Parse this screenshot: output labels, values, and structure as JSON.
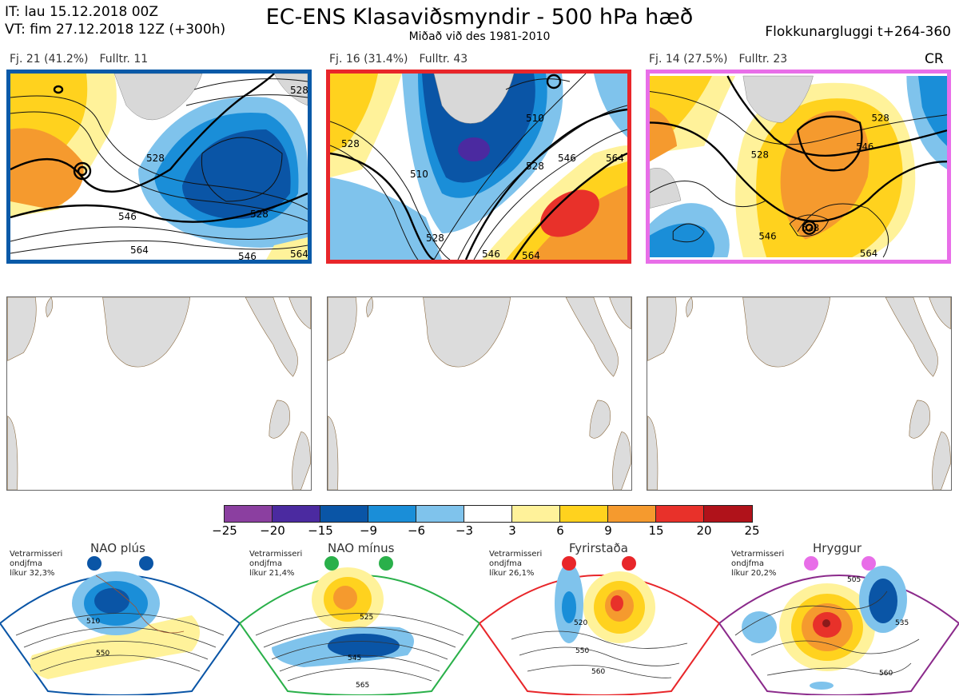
{
  "header": {
    "it": "IT: lau 15.12.2018 00Z",
    "vt": "VT: fim 27.12.2018 12Z  (+300h)",
    "title": "EC-ENS Klasaviðsmyndir - 500 hPa hæð",
    "subtitle": "Miðað við des 1981-2010",
    "window": "Flokkunargluggi t+264-360",
    "cr": "CR"
  },
  "clusters": [
    {
      "count": "Fj. 21 (41.2%)",
      "rep": "Fulltr. 11",
      "border": "#0a5aa8",
      "contours": [
        "528",
        "528",
        "528",
        "546",
        "564",
        "546",
        "564"
      ]
    },
    {
      "count": "Fj. 16 (31.4%)",
      "rep": "Fulltr. 43",
      "border": "#e8262a",
      "contours": [
        "528",
        "510",
        "510",
        "528",
        "546",
        "546",
        "564",
        "528",
        "564"
      ]
    },
    {
      "count": "Fj. 14 (27.5%)",
      "rep": "Fulltr. 23",
      "border": "#e86ee8",
      "contours": [
        "528",
        "528",
        "546",
        "546",
        "528",
        "564"
      ]
    }
  ],
  "colorbar": {
    "colors": [
      "#8b3fa0",
      "#4b2aa0",
      "#0a55a6",
      "#1a8ed8",
      "#7fc3ec",
      "#ffffff",
      "#fff29a",
      "#ffd21e",
      "#f59a2e",
      "#e8312a",
      "#b0121a"
    ],
    "ticks": [
      "−25",
      "−20",
      "−15",
      "−9",
      "−6",
      "−3",
      "3",
      "6",
      "9",
      "15",
      "20",
      "25"
    ]
  },
  "regimes": [
    {
      "name": "NAO plús",
      "stat_lines": [
        "Vetrarmisseri",
        "ondjfma",
        "líkur 32,3%"
      ],
      "color": "#0a55a6",
      "contours": [
        "510",
        "550"
      ]
    },
    {
      "name": "NAO mínus",
      "stat_lines": [
        "Vetrarmisseri",
        "ondjfma",
        "líkur 21,4%"
      ],
      "color": "#2ab04a",
      "contours": [
        "525",
        "545",
        "565"
      ]
    },
    {
      "name": "Fyrirstaða",
      "stat_lines": [
        "Vetrarmisseri",
        "ondjfma",
        "líkur 26,1%"
      ],
      "color": "#e8262a",
      "contours": [
        "520",
        "550",
        "560"
      ]
    },
    {
      "name": "Hryggur",
      "stat_lines": [
        "Vetrarmisseri",
        "ondjfma",
        "líkur 20,2%"
      ],
      "color": "#e86ee8",
      "contours": [
        "505",
        "535",
        "560"
      ]
    }
  ]
}
